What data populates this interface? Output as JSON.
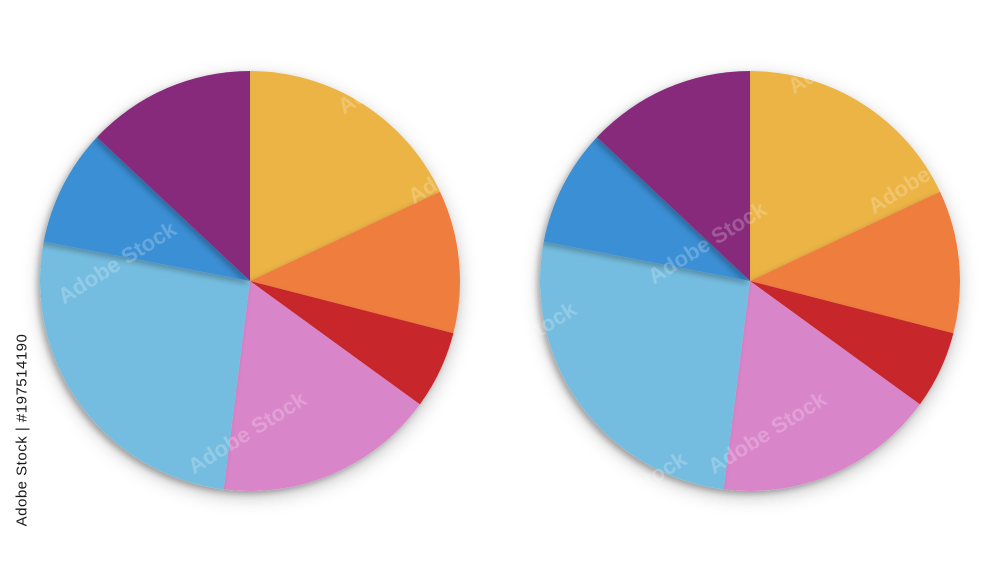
{
  "side_text": "Adobe Stock | #197514190",
  "watermark_text": "Adobe Stock",
  "chart_data": [
    {
      "type": "pie",
      "title": "",
      "legend": "none",
      "slices": [
        {
          "value": 18,
          "color": "#ECB445"
        },
        {
          "value": 11,
          "color": "#EF7D3C"
        },
        {
          "value": 6,
          "color": "#C7252A"
        },
        {
          "value": 17,
          "color": "#D985CA"
        },
        {
          "value": 26,
          "color": "#75BDE0"
        },
        {
          "value": 9,
          "color": "#3A8FD5"
        },
        {
          "value": 13,
          "color": "#87297C"
        }
      ]
    },
    {
      "type": "pie",
      "title": "",
      "legend": "none",
      "slices": [
        {
          "value": 18,
          "color": "#ECB445"
        },
        {
          "value": 11,
          "color": "#EF7D3C"
        },
        {
          "value": 6,
          "color": "#C7252A"
        },
        {
          "value": 17,
          "color": "#D985CA"
        },
        {
          "value": 26,
          "color": "#75BDE0"
        },
        {
          "value": 9,
          "color": "#3A8FD5"
        },
        {
          "value": 13,
          "color": "#87297C"
        }
      ]
    }
  ]
}
